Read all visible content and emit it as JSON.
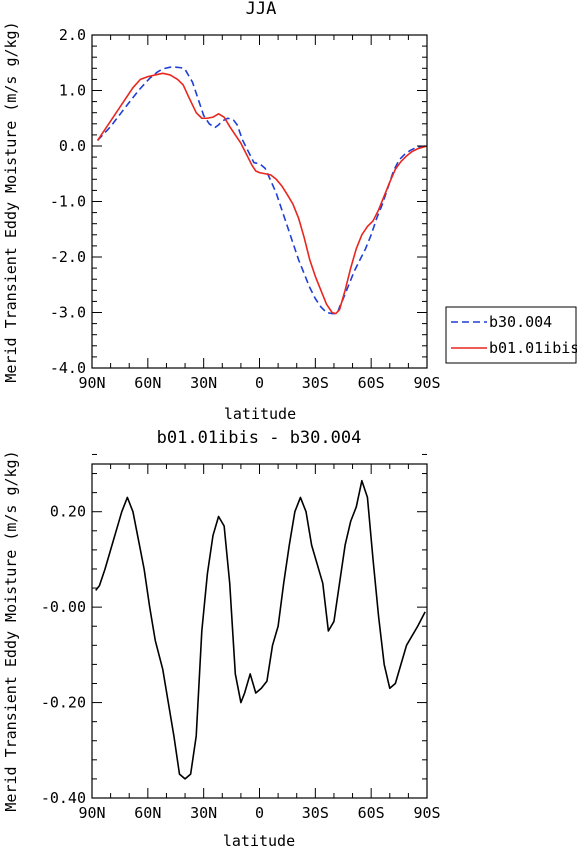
{
  "chart_data": [
    {
      "type": "line",
      "title": "JJA",
      "xlabel": "latitude",
      "ylabel": "Merid Transient Eddy Moisture (m/s g/kg)",
      "xlim": [
        90,
        -90
      ],
      "ylim": [
        -4.0,
        2.0
      ],
      "x_tick_values": [
        90,
        60,
        30,
        0,
        -30,
        -60,
        -90
      ],
      "x_tick_labels": [
        "90N",
        "60N",
        "30N",
        "0",
        "30S",
        "60S",
        "90S"
      ],
      "y_tick_values": [
        2.0,
        1.0,
        0.0,
        -1.0,
        -2.0,
        -3.0,
        -4.0
      ],
      "y_tick_labels": [
        "2.0",
        "1.0",
        "0.0",
        "-1.0",
        "-2.0",
        "-3.0",
        "-4.0"
      ],
      "legend_position": "right",
      "series": [
        {
          "name": "b30.004",
          "color": "#1f3fd6",
          "dash": "dashed",
          "x": [
            87,
            80,
            72,
            65,
            59,
            55,
            52,
            48,
            45,
            42,
            40,
            36,
            33,
            30,
            27,
            24,
            22,
            20,
            17,
            14,
            12,
            9,
            6,
            3,
            0,
            -3,
            -6,
            -9,
            -12,
            -15,
            -18,
            -21,
            -24,
            -27,
            -30,
            -33,
            -36,
            -39,
            -41,
            -42,
            -43,
            -45,
            -48,
            -51,
            -54,
            -57,
            -60,
            -63,
            -66,
            -69,
            -72,
            -75,
            -78,
            -81,
            -84,
            -87,
            -89
          ],
          "y": [
            0.1,
            0.35,
            0.7,
            1.0,
            1.22,
            1.33,
            1.39,
            1.42,
            1.42,
            1.41,
            1.38,
            1.15,
            0.85,
            0.55,
            0.4,
            0.33,
            0.38,
            0.45,
            0.5,
            0.47,
            0.38,
            0.1,
            -0.1,
            -0.3,
            -0.32,
            -0.4,
            -0.62,
            -0.85,
            -1.15,
            -1.45,
            -1.75,
            -2.05,
            -2.3,
            -2.55,
            -2.75,
            -2.9,
            -3.0,
            -3.02,
            -3.02,
            -3.0,
            -2.9,
            -2.75,
            -2.5,
            -2.25,
            -2.05,
            -1.85,
            -1.6,
            -1.3,
            -1.05,
            -0.75,
            -0.45,
            -0.25,
            -0.15,
            -0.08,
            -0.03,
            -0.01,
            0.0
          ]
        },
        {
          "name": "b01.01ibis",
          "color": "#e8261e",
          "dash": "solid",
          "x": [
            87,
            80,
            73,
            68,
            64,
            60,
            56,
            52,
            48,
            44,
            41,
            38,
            34,
            31,
            28,
            25,
            22,
            19,
            16,
            13,
            10,
            7,
            4,
            2,
            0,
            -3,
            -6,
            -9,
            -12,
            -15,
            -18,
            -21,
            -24,
            -27,
            -30,
            -33,
            -36,
            -39,
            -41,
            -43,
            -46,
            -49,
            -52,
            -55,
            -58,
            -61,
            -64,
            -67,
            -70,
            -73,
            -76,
            -79,
            -82,
            -85,
            -88,
            -90
          ],
          "y": [
            0.1,
            0.45,
            0.8,
            1.05,
            1.2,
            1.25,
            1.28,
            1.31,
            1.28,
            1.2,
            1.1,
            0.88,
            0.6,
            0.5,
            0.5,
            0.52,
            0.58,
            0.52,
            0.35,
            0.2,
            0.05,
            -0.15,
            -0.35,
            -0.45,
            -0.48,
            -0.5,
            -0.52,
            -0.6,
            -0.72,
            -0.88,
            -1.05,
            -1.3,
            -1.65,
            -2.05,
            -2.35,
            -2.6,
            -2.85,
            -3.0,
            -3.02,
            -2.95,
            -2.6,
            -2.2,
            -1.85,
            -1.6,
            -1.45,
            -1.35,
            -1.15,
            -0.9,
            -0.65,
            -0.42,
            -0.28,
            -0.18,
            -0.1,
            -0.05,
            -0.02,
            0.0
          ]
        }
      ]
    },
    {
      "type": "line",
      "title": "b01.01ibis - b30.004",
      "xlabel": "latitude",
      "ylabel": "Merid Transient Eddy Moisture (m/s g/kg)",
      "xlim": [
        90,
        -90
      ],
      "ylim": [
        -0.4,
        0.3
      ],
      "x_tick_values": [
        90,
        60,
        30,
        0,
        -30,
        -60,
        -90
      ],
      "x_tick_labels": [
        "90N",
        "60N",
        "30N",
        "0",
        "30S",
        "60S",
        "90S"
      ],
      "y_tick_values": [
        0.2,
        0.0,
        -0.2,
        -0.4
      ],
      "y_tick_labels": [
        "0.20",
        "-0.00",
        "-0.20",
        "-0.40"
      ],
      "series": [
        {
          "color": "#000000",
          "dash": "solid",
          "x": [
            88,
            86,
            83,
            80,
            77,
            74,
            71,
            68,
            65,
            62,
            59,
            56,
            52,
            49,
            46,
            43,
            40,
            37,
            34,
            31,
            28,
            25,
            22,
            19,
            16,
            13,
            10,
            8,
            5,
            2,
            -1,
            -4,
            -7,
            -10,
            -13,
            -16,
            -19,
            -22,
            -25,
            -28,
            -31,
            -34,
            -37,
            -40,
            -43,
            -46,
            -49,
            -52,
            -55,
            -58,
            -61,
            -64,
            -67,
            -70,
            -73,
            -76,
            -79,
            -82,
            -85,
            -89
          ],
          "y": [
            0.035,
            0.045,
            0.08,
            0.12,
            0.16,
            0.2,
            0.23,
            0.2,
            0.14,
            0.08,
            0.0,
            -0.07,
            -0.13,
            -0.2,
            -0.27,
            -0.35,
            -0.36,
            -0.35,
            -0.27,
            -0.05,
            0.07,
            0.15,
            0.19,
            0.17,
            0.05,
            -0.14,
            -0.2,
            -0.18,
            -0.14,
            -0.18,
            -0.17,
            -0.155,
            -0.08,
            -0.04,
            0.05,
            0.13,
            0.2,
            0.23,
            0.2,
            0.13,
            0.09,
            0.05,
            -0.05,
            -0.03,
            0.05,
            0.13,
            0.18,
            0.21,
            0.265,
            0.23,
            0.1,
            -0.02,
            -0.12,
            -0.17,
            -0.16,
            -0.12,
            -0.08,
            -0.06,
            -0.04,
            -0.01
          ]
        }
      ]
    }
  ]
}
